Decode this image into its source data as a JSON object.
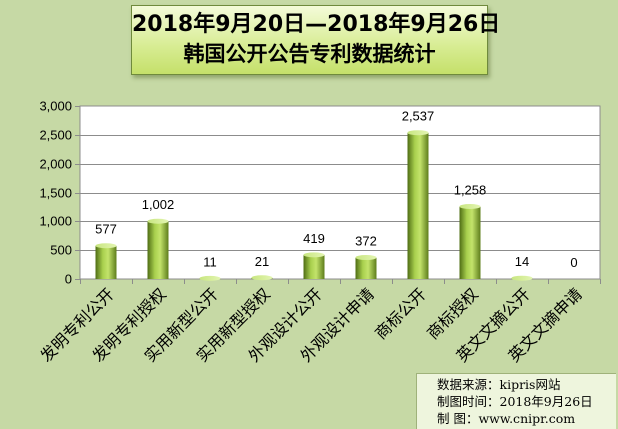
{
  "title": {
    "line1": "2018年9月20日—2018年9月26日",
    "line2": "韩国公开公告专利数据统计"
  },
  "chart_data": {
    "type": "bar",
    "categories": [
      "发明专利公开",
      "发明专利授权",
      "实用新型公开",
      "实用新型授权",
      "外观设计公开",
      "外观设计申请",
      "商标公开",
      "商标授权",
      "英文文摘公开",
      "英文文摘申请"
    ],
    "values": [
      577,
      1002,
      11,
      21,
      419,
      372,
      2537,
      1258,
      14,
      0
    ],
    "value_labels": [
      "577",
      "1,002",
      "11",
      "21",
      "419",
      "372",
      "2,537",
      "1,258",
      "14",
      "0"
    ],
    "ylim": [
      0,
      3000
    ],
    "yticks": [
      "0",
      "500",
      "1,000",
      "1,500",
      "2,000",
      "2,500",
      "3,000"
    ],
    "grid": true,
    "bar_color": "#8db33a",
    "plot_background": "#ffffff"
  },
  "footer": {
    "source": "数据来源：kipris网站",
    "date": "制图时间：2018年9月26日",
    "maker": "制    图：www.cnipr.com"
  }
}
